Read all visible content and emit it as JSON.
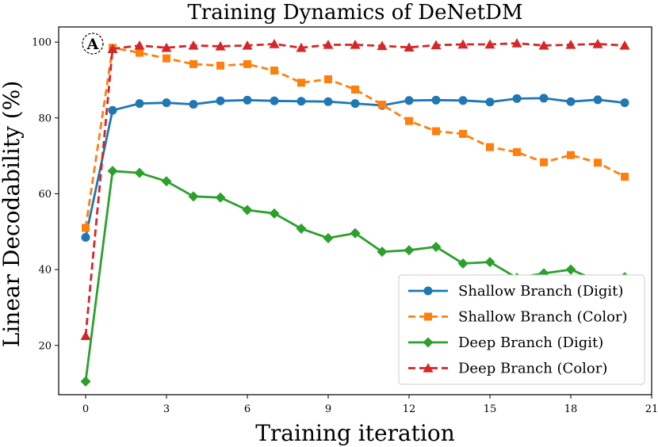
{
  "chart_data": {
    "type": "line",
    "title": "Training Dynamics of DeNetDM",
    "xlabel": "Training iteration",
    "ylabel": "Linear Decodability (%)",
    "xlim": [
      -1,
      21
    ],
    "ylim": [
      7,
      104
    ],
    "xticks": [
      0,
      3,
      6,
      9,
      12,
      15,
      18,
      21
    ],
    "yticks": [
      20,
      40,
      60,
      80,
      100
    ],
    "x": [
      0,
      1,
      2,
      3,
      4,
      5,
      6,
      7,
      8,
      9,
      10,
      11,
      12,
      13,
      14,
      15,
      16,
      17,
      18,
      19,
      20
    ],
    "annotation": "A",
    "legend_position": "lower-right",
    "series": [
      {
        "name": "Shallow Branch (Digit)",
        "color": "#1f77b4",
        "linestyle": "solid",
        "marker": "circle",
        "values": [
          48.5,
          82,
          83.8,
          84,
          83.6,
          84.5,
          84.7,
          84.5,
          84.4,
          84.3,
          83.8,
          83.3,
          84.6,
          84.7,
          84.6,
          84.2,
          85.1,
          85.2,
          84.3,
          84.8,
          84
        ]
      },
      {
        "name": "Shallow Branch (Color)",
        "color": "#ff7f0e",
        "linestyle": "dashed",
        "marker": "square",
        "values": [
          51,
          98.5,
          97.2,
          95.7,
          94.2,
          93.8,
          94.2,
          92.5,
          89.3,
          90.2,
          87.5,
          83.5,
          79.2,
          76.5,
          75.8,
          72.3,
          71,
          68.3,
          70.2,
          68.2,
          64.5
        ]
      },
      {
        "name": "Deep Branch (Digit)",
        "color": "#2ca02c",
        "linestyle": "solid",
        "marker": "diamond",
        "values": [
          10.5,
          66,
          65.5,
          63.3,
          59.3,
          59,
          55.7,
          54.8,
          50.8,
          48.3,
          49.6,
          44.7,
          45.1,
          46,
          41.6,
          42,
          37.8,
          39,
          40,
          37,
          38
        ]
      },
      {
        "name": "Deep Branch (Color)",
        "color": "#d62728",
        "linestyle": "dashed",
        "marker": "triangle",
        "values": [
          22.5,
          98.2,
          99.1,
          98.5,
          99.1,
          98.9,
          99.1,
          99.5,
          98.5,
          99.3,
          99.3,
          99,
          98.6,
          99.2,
          99.4,
          99.4,
          99.7,
          99.1,
          99.3,
          99.5,
          99.1
        ]
      }
    ]
  }
}
